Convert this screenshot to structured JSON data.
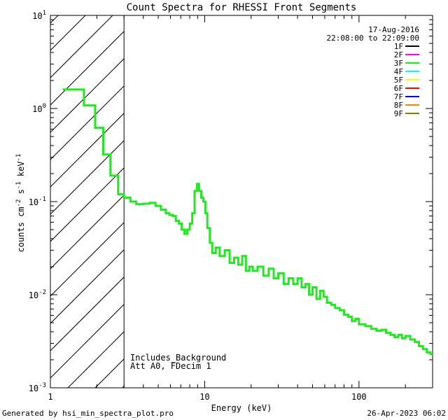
{
  "chart_data": {
    "type": "line",
    "title": "Count Spectra for RHESSI Front Segments",
    "xlabel": "Energy (keV)",
    "ylabel": "counts cm",
    "ylabel_sup1": "-2",
    "ylabel_s": "s",
    "ylabel_sup2": "-1",
    "ylabel_kev": "keV",
    "ylabel_sup3": "-1",
    "xscale": "log",
    "yscale": "log",
    "xlim": [
      1,
      300
    ],
    "ylim": [
      0.001,
      10
    ],
    "x_ticks": [
      {
        "value": 1,
        "label": "1"
      },
      {
        "value": 10,
        "label": "10"
      },
      {
        "value": 100,
        "label": "100"
      }
    ],
    "y_ticks": [
      {
        "value": 0.001,
        "base": "10",
        "exp": "-3"
      },
      {
        "value": 0.01,
        "base": "10",
        "exp": "-2"
      },
      {
        "value": 0.1,
        "base": "10",
        "exp": "-1"
      },
      {
        "value": 1,
        "base": "10",
        "exp": "0"
      },
      {
        "value": 10,
        "base": "10",
        "exp": "1"
      }
    ],
    "excluded_region": {
      "x_min": 1,
      "x_max": 3,
      "style": "hatched"
    },
    "date": "17-Aug-2016",
    "time_range": "22:08:00 to 22:09:00",
    "legend": [
      {
        "name": "1F",
        "color": "#000000"
      },
      {
        "name": "2F",
        "color": "#ff00ff"
      },
      {
        "name": "3F",
        "color": "#00ff00"
      },
      {
        "name": "4F",
        "color": "#00ffff"
      },
      {
        "name": "5F",
        "color": "#ffff00"
      },
      {
        "name": "6F",
        "color": "#ff0000"
      },
      {
        "name": "7F",
        "color": "#0000ff"
      },
      {
        "name": "8F",
        "color": "#ff7f00"
      },
      {
        "name": "9F",
        "color": "#808000"
      }
    ],
    "annotations": [
      "Includes_Background",
      "Att A0, FDecim 1"
    ],
    "series": [
      {
        "name": "3F",
        "color": "#22e822",
        "step": true,
        "x": [
          1.2,
          1.35,
          1.65,
          1.95,
          2.2,
          2.45,
          2.75,
          3.0,
          3.3,
          3.6,
          4.0,
          4.4,
          4.8,
          5.2,
          5.6,
          5.9,
          6.2,
          6.5,
          6.8,
          7.1,
          7.4,
          7.7,
          8.0,
          8.3,
          8.6,
          8.9,
          9.2,
          9.5,
          9.8,
          10.1,
          10.4,
          10.8,
          11.2,
          11.8,
          12.5,
          13.5,
          14.5,
          15.5,
          16.5,
          17.5,
          18.5,
          19.5,
          20.5,
          22,
          24,
          26,
          28,
          30,
          32.5,
          35,
          37.5,
          40,
          42.5,
          45,
          47.5,
          50,
          53,
          56,
          59,
          62,
          66,
          70,
          75,
          80,
          85,
          90,
          95,
          100,
          110,
          120,
          130,
          140,
          150,
          160,
          170,
          180,
          190,
          200,
          215,
          230,
          245,
          260,
          275,
          290
        ],
        "values": [
          1.6,
          1.6,
          1.08,
          0.62,
          0.32,
          0.19,
          0.12,
          0.11,
          0.1,
          0.094,
          0.095,
          0.097,
          0.09,
          0.082,
          0.075,
          0.072,
          0.07,
          0.062,
          0.058,
          0.05,
          0.045,
          0.05,
          0.058,
          0.075,
          0.13,
          0.155,
          0.13,
          0.11,
          0.1,
          0.075,
          0.052,
          0.036,
          0.028,
          0.032,
          0.026,
          0.03,
          0.022,
          0.025,
          0.021,
          0.026,
          0.018,
          0.02,
          0.018,
          0.02,
          0.016,
          0.019,
          0.015,
          0.017,
          0.013,
          0.015,
          0.013,
          0.015,
          0.012,
          0.013,
          0.01,
          0.012,
          0.009,
          0.011,
          0.0095,
          0.0082,
          0.0078,
          0.0072,
          0.0068,
          0.0061,
          0.0058,
          0.0052,
          0.0055,
          0.0048,
          0.0046,
          0.0043,
          0.0041,
          0.0042,
          0.0039,
          0.0037,
          0.0035,
          0.0037,
          0.0034,
          0.0036,
          0.0033,
          0.0031,
          0.0028,
          0.0026,
          0.0024,
          0.0023
        ]
      }
    ]
  },
  "footer": {
    "generated_by": "Generated by hsi_min_spectra_plot.pro",
    "timestamp": "26-Apr-2023 06:02"
  }
}
